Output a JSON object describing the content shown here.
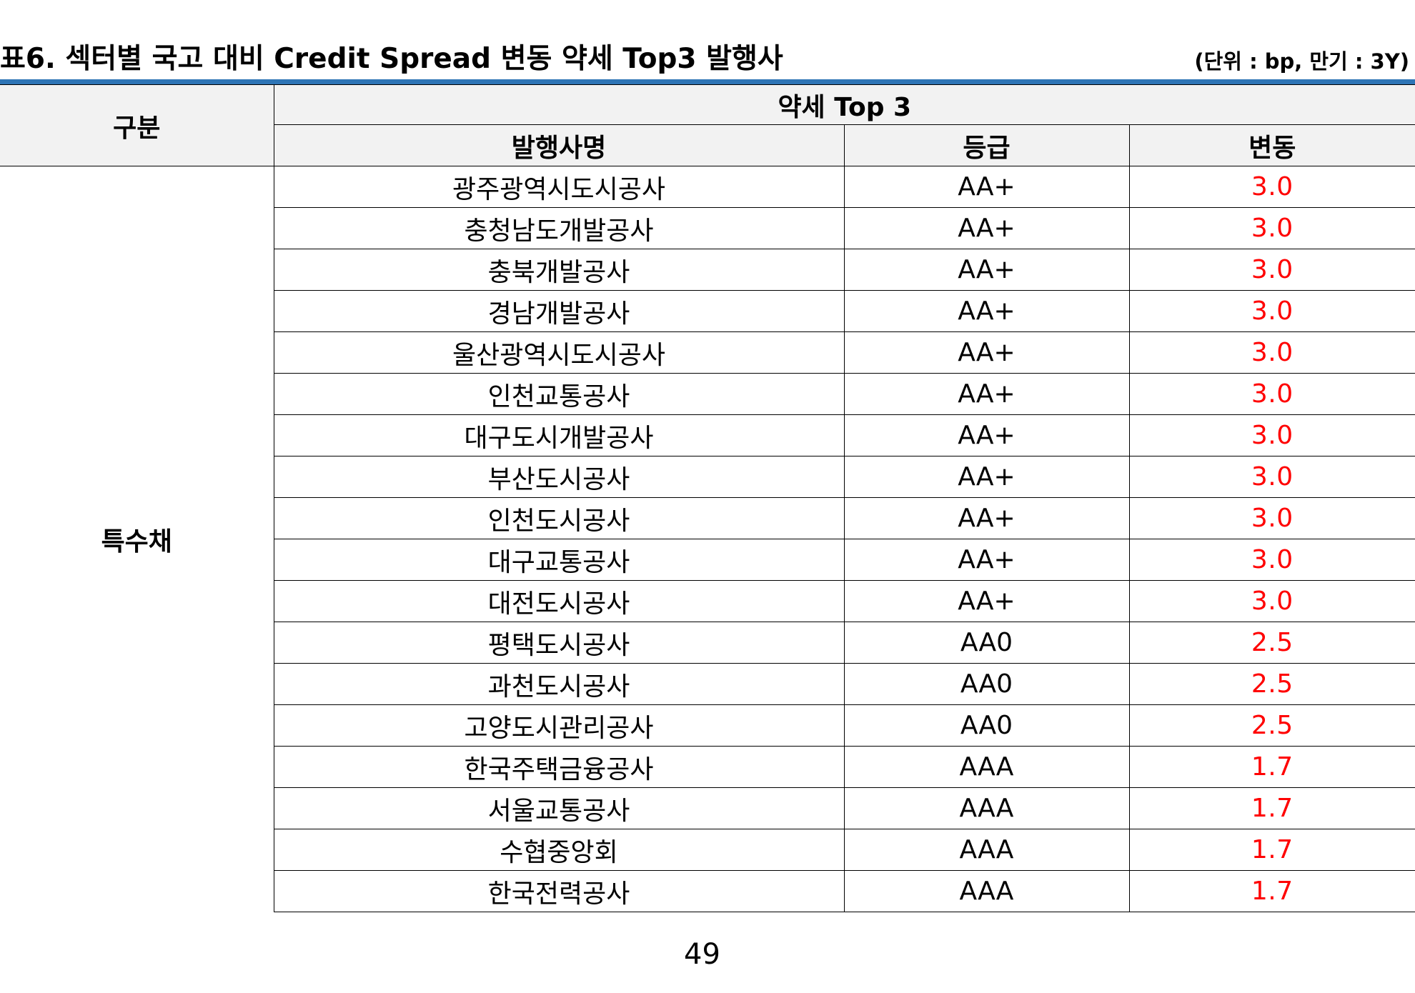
{
  "title": "표6. 섹터별 국고 대비 Credit Spread 변동 약세 Top3 발행사",
  "unit_note": "(단위 : bp, 만기 : 3Y)",
  "colors": {
    "title_rule": "#2e75b6",
    "header_bg": "#f2f2f2",
    "change_value": "#ff0000"
  },
  "header": {
    "group": "구분",
    "top_label": "약세 Top 3",
    "columns": [
      "발행사명",
      "등급",
      "변동"
    ]
  },
  "sector": "특수채",
  "rows": [
    {
      "issuer": "광주광역시도시공사",
      "grade": "AA+",
      "change": "3.0"
    },
    {
      "issuer": "충청남도개발공사",
      "grade": "AA+",
      "change": "3.0"
    },
    {
      "issuer": "충북개발공사",
      "grade": "AA+",
      "change": "3.0"
    },
    {
      "issuer": "경남개발공사",
      "grade": "AA+",
      "change": "3.0"
    },
    {
      "issuer": "울산광역시도시공사",
      "grade": "AA+",
      "change": "3.0"
    },
    {
      "issuer": "인천교통공사",
      "grade": "AA+",
      "change": "3.0"
    },
    {
      "issuer": "대구도시개발공사",
      "grade": "AA+",
      "change": "3.0"
    },
    {
      "issuer": "부산도시공사",
      "grade": "AA+",
      "change": "3.0"
    },
    {
      "issuer": "인천도시공사",
      "grade": "AA+",
      "change": "3.0"
    },
    {
      "issuer": "대구교통공사",
      "grade": "AA+",
      "change": "3.0"
    },
    {
      "issuer": "대전도시공사",
      "grade": "AA+",
      "change": "3.0"
    },
    {
      "issuer": "평택도시공사",
      "grade": "AA0",
      "change": "2.5"
    },
    {
      "issuer": "과천도시공사",
      "grade": "AA0",
      "change": "2.5"
    },
    {
      "issuer": "고양도시관리공사",
      "grade": "AA0",
      "change": "2.5"
    },
    {
      "issuer": "한국주택금융공사",
      "grade": "AAA",
      "change": "1.7"
    },
    {
      "issuer": "서울교통공사",
      "grade": "AAA",
      "change": "1.7"
    },
    {
      "issuer": "수협중앙회",
      "grade": "AAA",
      "change": "1.7"
    },
    {
      "issuer": "한국전력공사",
      "grade": "AAA",
      "change": "1.7"
    }
  ],
  "page_number": "49"
}
